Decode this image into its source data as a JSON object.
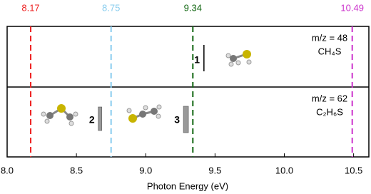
{
  "chart_data": {
    "type": "stick",
    "xlabel": "Photon Energy (eV)",
    "xlim": [
      8.0,
      10.61
    ],
    "xticks": [
      {
        "value": 8.0,
        "label": "8.0"
      },
      8.5,
      {
        "value": 9.0,
        "label": "9.0"
      },
      9.5,
      {
        "value": 10.0,
        "label": "10.0"
      },
      10.5
    ],
    "thresholds": [
      {
        "value": 8.17,
        "color": "#ee2222"
      },
      {
        "value": 8.75,
        "color": "#88ccee"
      },
      {
        "value": 9.34,
        "color": "#116611"
      },
      {
        "value": 10.49,
        "color": "#cc33cc"
      }
    ],
    "panels": [
      {
        "label": "m/z = 48",
        "formula": "CH₄S",
        "peaks": [
          {
            "x": 9.42,
            "label": "1"
          }
        ]
      },
      {
        "label": "m/z = 62",
        "formula": "C₂H₆S",
        "peaks": [
          {
            "x": 8.67,
            "label": "2"
          },
          {
            "x": 9.29,
            "label": "3"
          }
        ]
      }
    ]
  }
}
